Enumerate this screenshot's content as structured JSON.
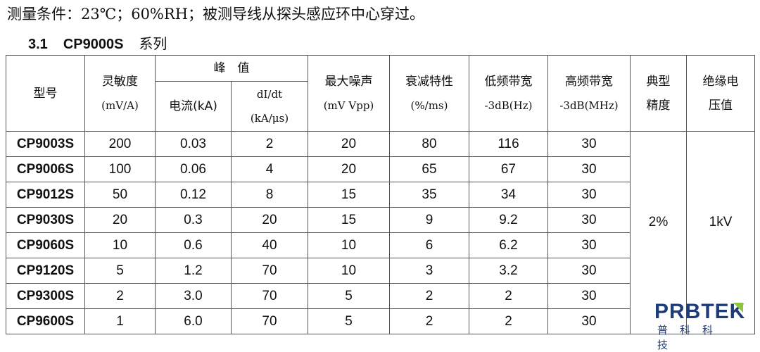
{
  "conditions": "测量条件：23℃；60%RH；被测导线从探头感应环中心穿过。",
  "section": {
    "number": "3.1",
    "model": "CP9000S",
    "suffix": "系列"
  },
  "headers": {
    "model": "型号",
    "sens": [
      "灵敏度",
      "(mV/A)"
    ],
    "peak": "峰　值",
    "current": "电流(kA)",
    "didt": [
      "dI/dt",
      "(kA/μs)"
    ],
    "noise": [
      "最大噪声",
      "(mV Vpp)"
    ],
    "decay": [
      "衰减特性",
      "(%/ms)"
    ],
    "low": [
      "低频带宽",
      "-3dB(Hz)"
    ],
    "high": [
      "高频带宽",
      "-3dB(MHz)"
    ],
    "acc": [
      "典型",
      "精度"
    ],
    "ins": [
      "绝缘电",
      "压值"
    ]
  },
  "rows": [
    [
      "CP9003S",
      "200",
      "0.03",
      "2",
      "20",
      "80",
      "116",
      "30"
    ],
    [
      "CP9006S",
      "100",
      "0.06",
      "4",
      "20",
      "65",
      "67",
      "30"
    ],
    [
      "CP9012S",
      "50",
      "0.12",
      "8",
      "15",
      "35",
      "34",
      "30"
    ],
    [
      "CP9030S",
      "20",
      "0.3",
      "20",
      "15",
      "9",
      "9.2",
      "30"
    ],
    [
      "CP9060S",
      "10",
      "0.6",
      "40",
      "10",
      "6",
      "6.2",
      "30"
    ],
    [
      "CP9120S",
      "5",
      "1.2",
      "70",
      "10",
      "3",
      "3.2",
      "30"
    ],
    [
      "CP9300S",
      "2",
      "3.0",
      "70",
      "5",
      "2",
      "2",
      "30"
    ],
    [
      "CP9600S",
      "1",
      "6.0",
      "70",
      "5",
      "2",
      "2",
      "30"
    ]
  ],
  "accuracy": "2%",
  "insulation": "1kV",
  "logo": {
    "en": "PRBTEK",
    "cn": "普科科技",
    "colors": {
      "text": "#1f3c7a",
      "accent": "#8cc63f"
    }
  }
}
